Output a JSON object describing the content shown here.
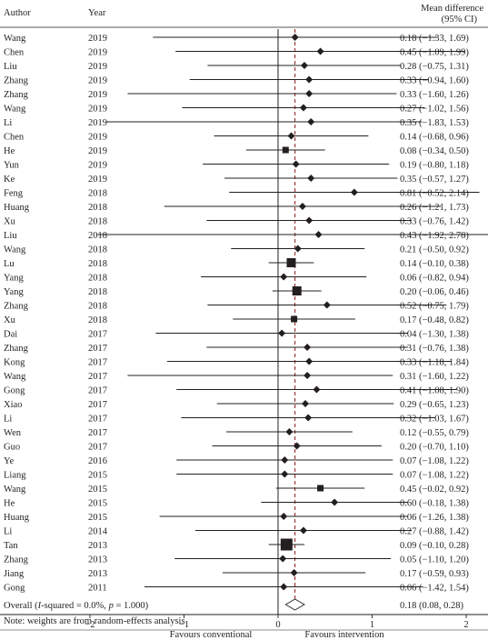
{
  "chart_data": {
    "type": "forest",
    "header": {
      "author": "Author",
      "year": "Year",
      "effect_line1": "Mean difference",
      "effect_line2": "(95% CI)"
    },
    "studies": [
      {
        "author": "Wang",
        "year": "2019",
        "md": 0.18,
        "lo": -1.33,
        "hi": 1.69,
        "ci_text": "0.18 (−1.33, 1.69)",
        "marker": "diamond"
      },
      {
        "author": "Chen",
        "year": "2019",
        "md": 0.45,
        "lo": -1.09,
        "hi": 1.99,
        "ci_text": "0.45 (−1.09, 1.99)",
        "marker": "diamond"
      },
      {
        "author": "Liu",
        "year": "2019",
        "md": 0.28,
        "lo": -0.75,
        "hi": 1.31,
        "ci_text": "0.28 (−0.75, 1.31)",
        "marker": "diamond"
      },
      {
        "author": "Zhang",
        "year": "2019",
        "md": 0.33,
        "lo": -0.94,
        "hi": 1.6,
        "ci_text": "0.33 (−0.94, 1.60)",
        "marker": "diamond"
      },
      {
        "author": "Zhang",
        "year": "2019",
        "md": 0.33,
        "lo": -1.6,
        "hi": 1.26,
        "ci_text": "0.33 (−1.60, 1.26)",
        "marker": "diamond"
      },
      {
        "author": "Wang",
        "year": "2019",
        "md": 0.27,
        "lo": -1.02,
        "hi": 1.56,
        "ci_text": "0.27 (−1.02, 1.56)",
        "marker": "diamond"
      },
      {
        "author": "Li",
        "year": "2019",
        "md": 0.35,
        "lo": -1.83,
        "hi": 1.53,
        "ci_text": "0.35 (−1.83, 1.53)",
        "marker": "diamond"
      },
      {
        "author": "Chen",
        "year": "2019",
        "md": 0.14,
        "lo": -0.68,
        "hi": 0.96,
        "ci_text": "0.14 (−0.68, 0.96)",
        "marker": "diamond"
      },
      {
        "author": "He",
        "year": "2019",
        "md": 0.08,
        "lo": -0.34,
        "hi": 0.5,
        "ci_text": "0.08 (−0.34, 0.50)",
        "marker": "square-sm"
      },
      {
        "author": "Yun",
        "year": "2019",
        "md": 0.19,
        "lo": -0.8,
        "hi": 1.18,
        "ci_text": "0.19 (−0.80, 1.18)",
        "marker": "diamond"
      },
      {
        "author": "Ke",
        "year": "2019",
        "md": 0.35,
        "lo": -0.57,
        "hi": 1.27,
        "ci_text": "0.35 (−0.57, 1.27)",
        "marker": "diamond"
      },
      {
        "author": "Feng",
        "year": "2018",
        "md": 0.81,
        "lo": -0.52,
        "hi": 2.14,
        "ci_text": "0.81 (−0.52, 2.14)",
        "marker": "diamond"
      },
      {
        "author": "Huang",
        "year": "2018",
        "md": 0.26,
        "lo": -1.21,
        "hi": 1.73,
        "ci_text": "0.26 (−1.21, 1.73)",
        "marker": "diamond"
      },
      {
        "author": "Xu",
        "year": "2018",
        "md": 0.33,
        "lo": -0.76,
        "hi": 1.42,
        "ci_text": "0.33 (−0.76, 1.42)",
        "marker": "diamond"
      },
      {
        "author": "Liu",
        "year": "2018",
        "md": 0.43,
        "lo": -1.92,
        "hi": 2.78,
        "ci_text": "0.43 (−1.92, 2.78)",
        "marker": "diamond"
      },
      {
        "author": "Wang",
        "year": "2018",
        "md": 0.21,
        "lo": -0.5,
        "hi": 0.92,
        "ci_text": "0.21 (−0.50, 0.92)",
        "marker": "diamond"
      },
      {
        "author": "Lu",
        "year": "2018",
        "md": 0.14,
        "lo": -0.1,
        "hi": 0.38,
        "ci_text": "0.14 (−0.10, 0.38)",
        "marker": "square-lg"
      },
      {
        "author": "Yang",
        "year": "2018",
        "md": 0.06,
        "lo": -0.82,
        "hi": 0.94,
        "ci_text": "0.06 (−0.82, 0.94)",
        "marker": "diamond"
      },
      {
        "author": "Yang",
        "year": "2018",
        "md": 0.2,
        "lo": -0.06,
        "hi": 0.46,
        "ci_text": "0.20 (−0.06, 0.46)",
        "marker": "square-lg"
      },
      {
        "author": "Zhang",
        "year": "2018",
        "md": 0.52,
        "lo": -0.75,
        "hi": 1.79,
        "ci_text": "0.52 (−0.75, 1.79)",
        "marker": "diamond"
      },
      {
        "author": "Xu",
        "year": "2018",
        "md": 0.17,
        "lo": -0.48,
        "hi": 0.82,
        "ci_text": "0.17 (−0.48, 0.82)",
        "marker": "square-sm"
      },
      {
        "author": "Dai",
        "year": "2017",
        "md": 0.04,
        "lo": -1.3,
        "hi": 1.38,
        "ci_text": "0.04 (−1.30, 1.38)",
        "marker": "diamond"
      },
      {
        "author": "Zhang",
        "year": "2017",
        "md": 0.31,
        "lo": -0.76,
        "hi": 1.38,
        "ci_text": "0.31 (−0.76, 1.38)",
        "marker": "diamond"
      },
      {
        "author": "Kong",
        "year": "2017",
        "md": 0.33,
        "lo": -1.18,
        "hi": 1.84,
        "ci_text": "0.33 (−1.18, 1.84)",
        "marker": "diamond"
      },
      {
        "author": "Wang",
        "year": "2017",
        "md": 0.31,
        "lo": -1.6,
        "hi": 1.22,
        "ci_text": "0.31 (−1.60, 1.22)",
        "marker": "diamond"
      },
      {
        "author": "Gong",
        "year": "2017",
        "md": 0.41,
        "lo": -1.08,
        "hi": 1.9,
        "ci_text": "0.41 (−1.08, 1.90)",
        "marker": "diamond"
      },
      {
        "author": "Xiao",
        "year": "2017",
        "md": 0.29,
        "lo": -0.65,
        "hi": 1.23,
        "ci_text": "0.29 (−0.65, 1.23)",
        "marker": "diamond"
      },
      {
        "author": "Li",
        "year": "2017",
        "md": 0.32,
        "lo": -1.03,
        "hi": 1.67,
        "ci_text": "0.32 (−1.03, 1.67)",
        "marker": "diamond"
      },
      {
        "author": "Wen",
        "year": "2017",
        "md": 0.12,
        "lo": -0.55,
        "hi": 0.79,
        "ci_text": "0.12 (−0.55, 0.79)",
        "marker": "diamond"
      },
      {
        "author": "Guo",
        "year": "2017",
        "md": 0.2,
        "lo": -0.7,
        "hi": 1.1,
        "ci_text": "0.20 (−0.70, 1.10)",
        "marker": "diamond"
      },
      {
        "author": "Ye",
        "year": "2016",
        "md": 0.07,
        "lo": -1.08,
        "hi": 1.22,
        "ci_text": "0.07 (−1.08, 1.22)",
        "marker": "diamond"
      },
      {
        "author": "Liang",
        "year": "2015",
        "md": 0.07,
        "lo": -1.08,
        "hi": 1.22,
        "ci_text": "0.07 (−1.08, 1.22)",
        "marker": "diamond"
      },
      {
        "author": "Wang",
        "year": "2015",
        "md": 0.45,
        "lo": -0.02,
        "hi": 0.92,
        "ci_text": "0.45 (−0.02, 0.92)",
        "marker": "square-sm"
      },
      {
        "author": "He",
        "year": "2015",
        "md": 0.6,
        "lo": -0.18,
        "hi": 1.38,
        "ci_text": "0.60 (−0.18, 1.38)",
        "marker": "diamond"
      },
      {
        "author": "Huang",
        "year": "2015",
        "md": 0.06,
        "lo": -1.26,
        "hi": 1.38,
        "ci_text": "0.06 (−1.26, 1.38)",
        "marker": "diamond"
      },
      {
        "author": "Li",
        "year": "2014",
        "md": 0.27,
        "lo": -0.88,
        "hi": 1.42,
        "ci_text": "0.27 (−0.88, 1.42)",
        "marker": "diamond"
      },
      {
        "author": "Tan",
        "year": "2013",
        "md": 0.09,
        "lo": -0.1,
        "hi": 0.28,
        "ci_text": "0.09 (−0.10, 0.28)",
        "marker": "square-xl"
      },
      {
        "author": "Zhang",
        "year": "2013",
        "md": 0.05,
        "lo": -1.1,
        "hi": 1.2,
        "ci_text": "0.05 (−1.10, 1.20)",
        "marker": "diamond"
      },
      {
        "author": "Jiang",
        "year": "2013",
        "md": 0.17,
        "lo": -0.59,
        "hi": 0.93,
        "ci_text": "0.17 (−0.59, 0.93)",
        "marker": "diamond"
      },
      {
        "author": "Gong",
        "year": "2011",
        "md": 0.06,
        "lo": -1.42,
        "hi": 1.54,
        "ci_text": "0.06 (−1.42, 1.54)",
        "marker": "diamond"
      }
    ],
    "overall": {
      "label_prefix": "Overall (",
      "label_italic": "I",
      "label_suffix": "-squared = 0.0%, ",
      "label_p_italic": "p",
      "label_p_value": " = 1.000)",
      "md": 0.18,
      "lo": 0.08,
      "hi": 0.28,
      "ci_text": "0.18 (0.08, 0.28)"
    },
    "note": "Note: weights are from random-effects analysis",
    "x_axis": {
      "range": [
        -3,
        3
      ],
      "ticks": [
        -2,
        -1,
        0,
        1,
        2
      ],
      "tick_labels": [
        "−2",
        "−1",
        "0",
        "1",
        "2"
      ],
      "left_caption": "Favours conventional",
      "right_caption": "Favours intervention"
    },
    "reference_line": 0,
    "pooled_line": 0.18,
    "colors": {
      "ink": "#231f20",
      "pooled_line": "#8b1a1a"
    }
  }
}
